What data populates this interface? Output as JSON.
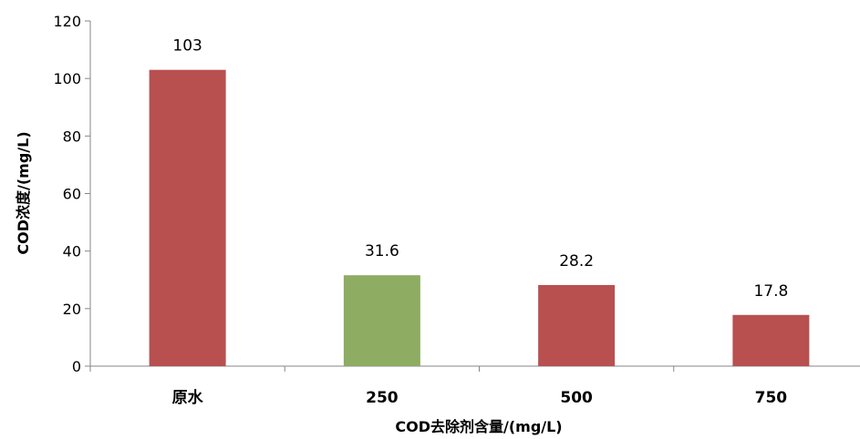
{
  "chart_data": {
    "type": "bar",
    "categories": [
      "原水",
      "250",
      "500",
      "750"
    ],
    "values": [
      103,
      31.6,
      28.2,
      17.8
    ],
    "data_labels": [
      "103",
      "31.6",
      "28.2",
      "17.8"
    ],
    "xlabel": "COD去除剂含量/(mg/L)",
    "ylabel": "COD浓度/(mg/L)",
    "ylim": [
      0,
      120
    ],
    "yticks": [
      0,
      20,
      40,
      60,
      80,
      100,
      120
    ],
    "grid": false,
    "legend": "none",
    "bar_colors": [
      "#B85050",
      "#8EAC62",
      "#B85050",
      "#B85050"
    ]
  }
}
